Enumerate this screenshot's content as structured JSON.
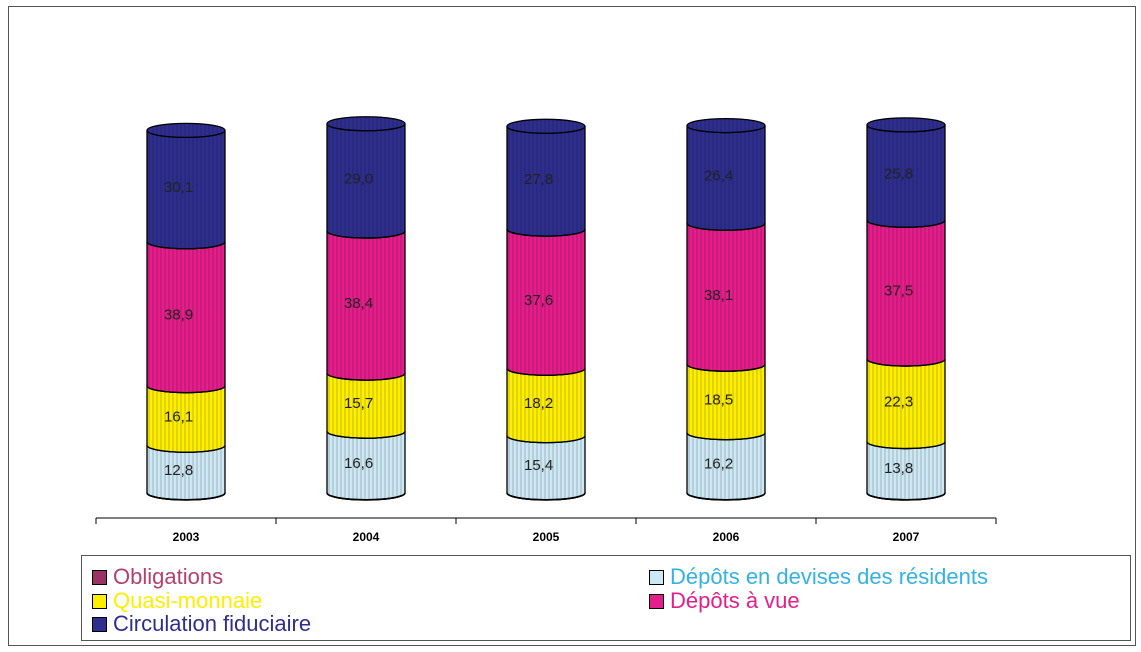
{
  "chart_data": {
    "type": "bar",
    "stacked": true,
    "style": "3d-cylinder",
    "categories": [
      "2003",
      "2004",
      "2005",
      "2006",
      "2007"
    ],
    "series": [
      {
        "name": "Obligations",
        "color": "#993366",
        "legend_color": "#b5406f",
        "values": [
          0.1,
          0.1,
          0.1,
          0.1,
          0.1
        ]
      },
      {
        "name": "Dépôts en devises des résidents",
        "color": "#cce8f4",
        "legend_color": "#33b2e6",
        "values": [
          12.8,
          16.6,
          15.4,
          16.2,
          13.8
        ]
      },
      {
        "name": "Quasi-monnaie",
        "color": "#ffee00",
        "legend_color": "#ffee00",
        "values": [
          16.1,
          15.7,
          18.2,
          18.5,
          22.3
        ]
      },
      {
        "name": "Dépôts à vue",
        "color": "#e61e8c",
        "legend_color": "#e61e8c",
        "values": [
          38.9,
          38.4,
          37.6,
          38.1,
          37.5
        ]
      },
      {
        "name": "Circulation fiduciaire",
        "color": "#2e2e8f",
        "legend_color": "#2e2e8f",
        "values": [
          30.1,
          29.0,
          27.8,
          26.4,
          25.8
        ]
      }
    ],
    "data_labels": [
      [
        "",
        "12,8",
        "16,1",
        "38,9",
        "30,1"
      ],
      [
        "",
        "16,6",
        "15,7",
        "38,4",
        "29,0"
      ],
      [
        "",
        "15,4",
        "18,2",
        "37,6",
        "27,8"
      ],
      [
        "",
        "16,2",
        "18,5",
        "38,1",
        "26,4"
      ],
      [
        "",
        "13,8",
        "22,3",
        "37,5",
        "25,8"
      ]
    ],
    "legend_position": "bottom",
    "grid": false
  },
  "legend": {
    "items": [
      {
        "label": "Obligations",
        "color": "#993366",
        "text_color": "#b5406f"
      },
      {
        "label": "Quasi-monnaie",
        "color": "#ffee00",
        "text_color": "#ffee00"
      },
      {
        "label": "Circulation fiduciaire",
        "color": "#2e2e8f",
        "text_color": "#2e2e8f"
      },
      {
        "label": "Dépôts en devises des résidents",
        "color": "#cce8f4",
        "text_color": "#33b2e6"
      },
      {
        "label": "Dépôts à vue",
        "color": "#e61e8c",
        "text_color": "#e61e8c"
      }
    ]
  }
}
